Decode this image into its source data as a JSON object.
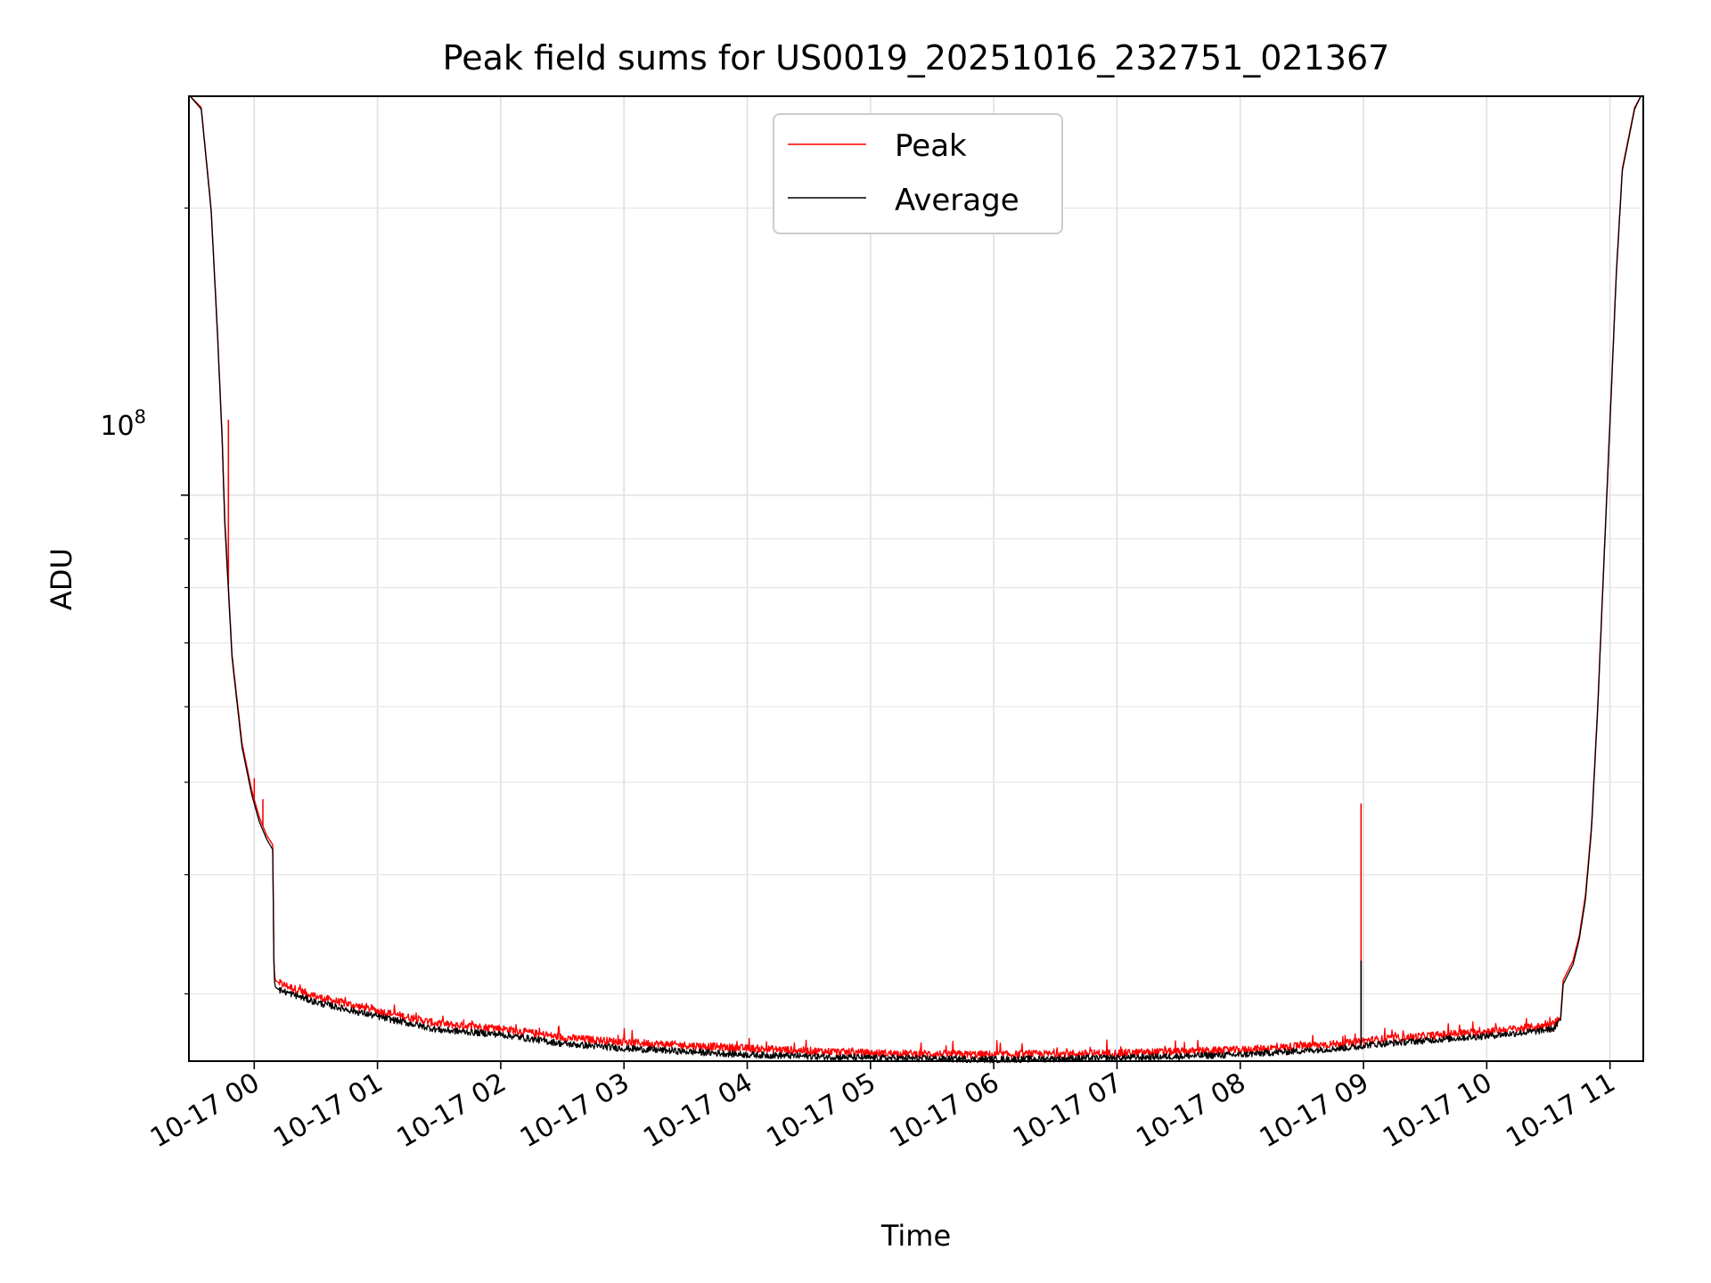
{
  "chart_data": {
    "type": "line",
    "title": "Peak field sums for US0019_20251016_232751_021367",
    "xlabel": "Time",
    "ylabel": "ADU",
    "yscale": "log",
    "x_unit": "hours relative to 10-17 00:00",
    "xlim": [
      -0.53,
      11.27
    ],
    "ylim": [
      25500000,
      262000000
    ],
    "grid": true,
    "legend_position": "upper center",
    "x_tick_values": [
      0,
      1,
      2,
      3,
      4,
      5,
      6,
      7,
      8,
      9,
      10,
      11
    ],
    "x_tick_labels": [
      "10-17 00",
      "10-17 01",
      "10-17 02",
      "10-17 03",
      "10-17 04",
      "10-17 05",
      "10-17 06",
      "10-17 07",
      "10-17 08",
      "10-17 09",
      "10-17 10",
      "10-17 11"
    ],
    "y_major_tick": {
      "value": 100000000,
      "base": "10",
      "exponent": "8"
    },
    "y_minor_ticks": [
      30000000,
      40000000,
      50000000,
      60000000,
      70000000,
      80000000,
      90000000,
      200000000
    ],
    "series": [
      {
        "name": "Peak",
        "color": "#ff0000",
        "x": [
          -0.52,
          -0.43,
          -0.35,
          -0.3,
          -0.26,
          -0.24,
          -0.22,
          -0.18,
          -0.1,
          -0.02,
          0.04,
          0.1,
          0.15,
          0.16,
          0.17,
          0.2,
          0.5,
          1.0,
          1.5,
          2.0,
          2.5,
          3.0,
          3.5,
          4.0,
          5.0,
          6.0,
          7.0,
          8.0,
          8.8,
          8.97,
          9.0,
          9.5,
          10.0,
          10.4,
          10.55,
          10.6,
          10.62,
          10.7,
          10.75,
          10.8,
          10.85,
          10.9,
          10.95,
          11.0,
          11.05,
          11.1,
          11.2,
          11.25
        ],
        "y": [
          262000000,
          255000000,
          200000000,
          150000000,
          115000000,
          95000000,
          85000000,
          68000000,
          55000000,
          49000000,
          46000000,
          44000000,
          43000000,
          32000000,
          31000000,
          30800000,
          29800000,
          28800000,
          27900000,
          27600000,
          27000000,
          26700000,
          26500000,
          26300000,
          26000000,
          25900000,
          26000000,
          26200000,
          26600000,
          26700000,
          26800000,
          27100000,
          27400000,
          27700000,
          27900000,
          28500000,
          31000000,
          32500000,
          34500000,
          38000000,
          45000000,
          60000000,
          85000000,
          120000000,
          170000000,
          220000000,
          255000000,
          262000000
        ],
        "spikes": [
          {
            "x": -0.21,
            "y": 120000000
          },
          {
            "x": 0.0,
            "y": 50500000
          },
          {
            "x": 0.07,
            "y": 48000000
          },
          {
            "x": 1.7,
            "y": 28200000
          },
          {
            "x": 8.98,
            "y": 47500000
          }
        ]
      },
      {
        "name": "Average",
        "color": "#000000",
        "x": [
          -0.52,
          -0.43,
          -0.35,
          -0.3,
          -0.26,
          -0.24,
          -0.22,
          -0.18,
          -0.1,
          -0.02,
          0.04,
          0.1,
          0.15,
          0.16,
          0.17,
          0.2,
          0.5,
          1.0,
          1.5,
          2.0,
          2.5,
          3.0,
          3.5,
          4.0,
          5.0,
          6.0,
          7.0,
          8.0,
          8.8,
          8.97,
          9.0,
          9.5,
          10.0,
          10.4,
          10.55,
          10.6,
          10.62,
          10.7,
          10.75,
          10.8,
          10.85,
          10.9,
          10.95,
          11.0,
          11.05,
          11.1,
          11.2,
          11.25
        ],
        "y": [
          262000000,
          254000000,
          199000000,
          149000000,
          114000000,
          94000000,
          84000000,
          67500000,
          54500000,
          48500000,
          45500000,
          43600000,
          42500000,
          31500000,
          30500000,
          30300000,
          29400000,
          28400000,
          27500000,
          27200000,
          26600000,
          26300000,
          26100000,
          25900000,
          25700000,
          25600000,
          25700000,
          25900000,
          26300000,
          26400000,
          26500000,
          26800000,
          27100000,
          27400000,
          27600000,
          28200000,
          30700000,
          32200000,
          34200000,
          37600000,
          44600000,
          59500000,
          84500000,
          119000000,
          169000000,
          219000000,
          254000000,
          262000000
        ],
        "spikes": [
          {
            "x": 8.98,
            "y": 32500000
          }
        ]
      }
    ]
  }
}
